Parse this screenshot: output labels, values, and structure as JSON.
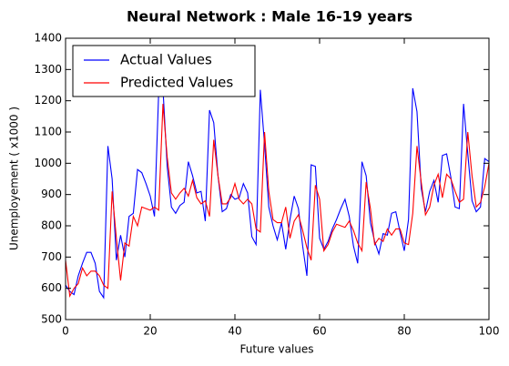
{
  "chart_data": {
    "type": "line",
    "title": "Neural Network : Male 16-19 years",
    "xlabel": "Future values",
    "ylabel": "Unemployement ( x1000 )",
    "x": [
      0,
      1,
      2,
      3,
      4,
      5,
      6,
      7,
      8,
      9,
      10,
      11,
      12,
      13,
      14,
      15,
      16,
      17,
      18,
      19,
      20,
      21,
      22,
      23,
      24,
      25,
      26,
      27,
      28,
      29,
      30,
      31,
      32,
      33,
      34,
      35,
      36,
      37,
      38,
      39,
      40,
      41,
      42,
      43,
      44,
      45,
      46,
      47,
      48,
      49,
      50,
      51,
      52,
      53,
      54,
      55,
      56,
      57,
      58,
      59,
      60,
      61,
      62,
      63,
      64,
      65,
      66,
      67,
      68,
      69,
      70,
      71,
      72,
      73,
      74,
      75,
      76,
      77,
      78,
      79,
      80,
      81,
      82,
      83,
      84,
      85,
      86,
      87,
      88,
      89,
      90,
      91,
      92,
      93,
      94,
      95,
      96,
      97,
      98,
      99,
      100
    ],
    "series": [
      {
        "name": "Actual Values",
        "color": "#0000ff",
        "values": [
          610,
          590,
          580,
          640,
          680,
          715,
          715,
          680,
          590,
          570,
          1055,
          950,
          690,
          770,
          700,
          830,
          840,
          980,
          970,
          935,
          895,
          830,
          1230,
          1240,
          990,
          860,
          840,
          865,
          875,
          1005,
          960,
          905,
          910,
          815,
          1170,
          1130,
          960,
          845,
          855,
          900,
          885,
          890,
          935,
          905,
          765,
          740,
          1235,
          1060,
          860,
          800,
          755,
          810,
          725,
          820,
          895,
          855,
          735,
          640,
          995,
          990,
          760,
          725,
          750,
          790,
          820,
          855,
          885,
          830,
          735,
          680,
          1005,
          960,
          810,
          750,
          710,
          775,
          770,
          840,
          845,
          780,
          720,
          820,
          1240,
          1165,
          920,
          845,
          910,
          945,
          875,
          1025,
          1030,
          955,
          860,
          855,
          1190,
          1030,
          880,
          845,
          860,
          1015,
          1005
        ]
      },
      {
        "name": "Predicted Values",
        "color": "#ff0000",
        "values": [
          690,
          575,
          600,
          615,
          665,
          640,
          655,
          655,
          640,
          610,
          600,
          910,
          760,
          625,
          745,
          735,
          830,
          800,
          860,
          855,
          850,
          860,
          850,
          1190,
          1020,
          905,
          885,
          905,
          920,
          895,
          945,
          890,
          870,
          880,
          830,
          1075,
          960,
          870,
          870,
          890,
          935,
          885,
          870,
          885,
          870,
          790,
          780,
          1100,
          910,
          820,
          810,
          810,
          860,
          760,
          815,
          835,
          785,
          730,
          690,
          930,
          885,
          720,
          740,
          780,
          805,
          800,
          795,
          815,
          785,
          745,
          720,
          940,
          855,
          740,
          760,
          750,
          790,
          770,
          790,
          790,
          745,
          740,
          840,
          1055,
          940,
          835,
          860,
          930,
          965,
          890,
          965,
          950,
          910,
          875,
          885,
          1100,
          960,
          860,
          875,
          925,
          1000
        ]
      }
    ],
    "xlim": [
      0,
      100
    ],
    "xticks": [
      0,
      20,
      40,
      60,
      80,
      100
    ],
    "ylim": [
      500,
      1400
    ],
    "yticks": [
      500,
      600,
      700,
      800,
      900,
      1000,
      1100,
      1200,
      1300,
      1400
    ],
    "legend": "upper left"
  }
}
